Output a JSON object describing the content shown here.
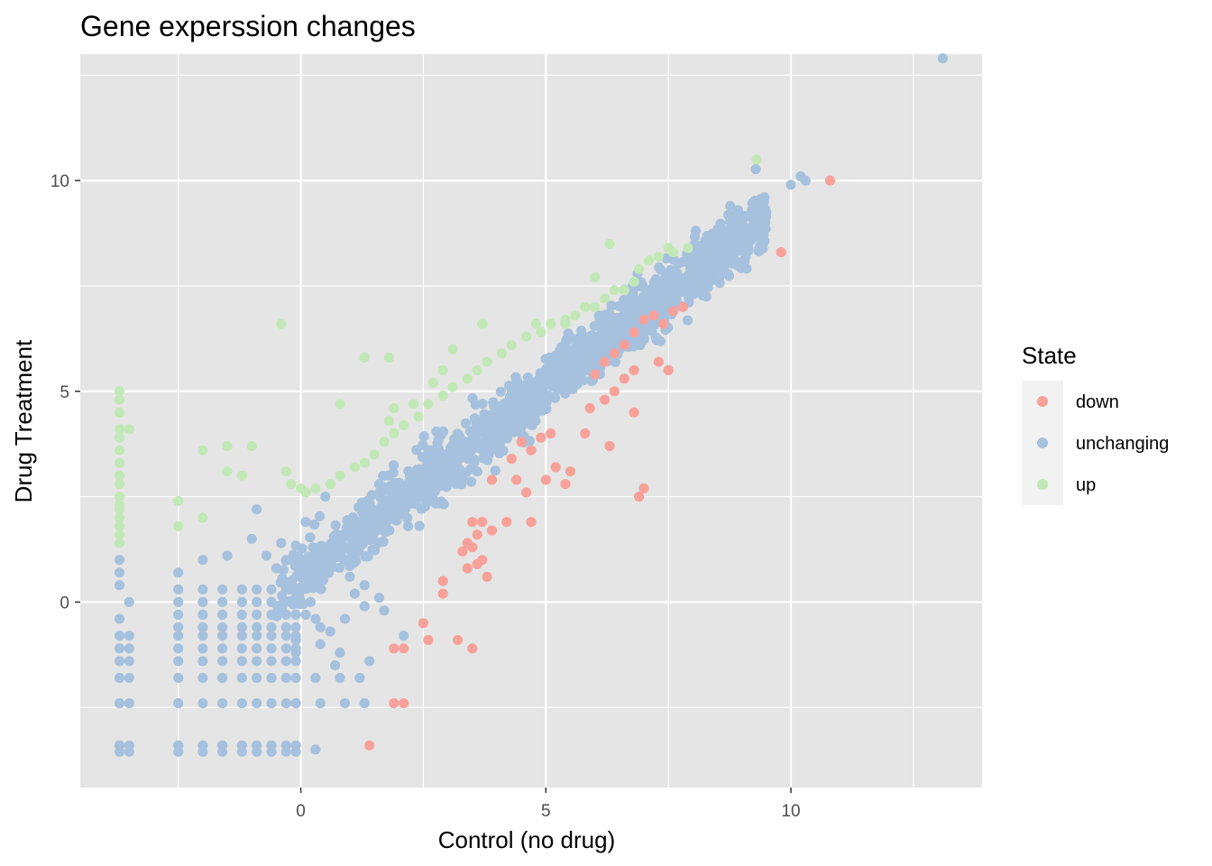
{
  "chart_data": {
    "type": "scatter",
    "title": "Gene experssion changes",
    "xlabel": "Control (no drug)",
    "ylabel": "Drug Treatment",
    "xlim": [
      -4.5,
      13.9
    ],
    "ylim": [
      -4.4,
      13.0
    ],
    "x_ticks": [
      0,
      5,
      10
    ],
    "y_ticks": [
      0,
      5,
      10
    ],
    "grid": true,
    "panel_color": "#e5e5e5",
    "legend": {
      "title": "State",
      "position": "right",
      "entries": [
        {
          "label": "down",
          "color": "#f8a19a"
        },
        {
          "label": "unchanging",
          "color": "#a6c1dd"
        },
        {
          "label": "up",
          "color": "#c3e8b7"
        }
      ]
    },
    "series": [
      {
        "name": "down",
        "color": "#f8a19a",
        "points": [
          [
            10.8,
            10.0
          ],
          [
            9.8,
            8.3
          ],
          [
            7.8,
            7.0
          ],
          [
            7.6,
            6.9
          ],
          [
            7.4,
            6.6
          ],
          [
            7.2,
            6.8
          ],
          [
            7.0,
            6.7
          ],
          [
            6.8,
            6.4
          ],
          [
            6.6,
            6.1
          ],
          [
            6.4,
            5.9
          ],
          [
            6.2,
            5.7
          ],
          [
            6.0,
            5.4
          ],
          [
            7.3,
            5.7
          ],
          [
            7.5,
            5.5
          ],
          [
            6.8,
            5.5
          ],
          [
            6.6,
            5.3
          ],
          [
            6.4,
            5.0
          ],
          [
            6.2,
            4.8
          ],
          [
            5.9,
            4.6
          ],
          [
            6.8,
            4.5
          ],
          [
            5.8,
            4.0
          ],
          [
            6.3,
            3.7
          ],
          [
            5.1,
            4.0
          ],
          [
            4.9,
            3.9
          ],
          [
            4.5,
            3.8
          ],
          [
            4.7,
            3.6
          ],
          [
            4.3,
            3.4
          ],
          [
            3.9,
            2.9
          ],
          [
            4.4,
            2.9
          ],
          [
            4.6,
            2.6
          ],
          [
            5.0,
            2.9
          ],
          [
            5.2,
            3.2
          ],
          [
            5.5,
            3.1
          ],
          [
            5.4,
            2.8
          ],
          [
            4.2,
            1.9
          ],
          [
            4.7,
            1.9
          ],
          [
            3.5,
            1.9
          ],
          [
            3.7,
            1.9
          ],
          [
            3.9,
            1.7
          ],
          [
            3.6,
            1.6
          ],
          [
            3.4,
            1.4
          ],
          [
            3.5,
            1.3
          ],
          [
            3.3,
            1.2
          ],
          [
            3.7,
            1.0
          ],
          [
            3.6,
            0.9
          ],
          [
            3.4,
            0.8
          ],
          [
            3.8,
            0.6
          ],
          [
            2.9,
            0.5
          ],
          [
            2.9,
            0.2
          ],
          [
            2.5,
            -0.5
          ],
          [
            2.6,
            -0.9
          ],
          [
            3.2,
            -0.9
          ],
          [
            3.5,
            -1.1
          ],
          [
            1.9,
            -1.1
          ],
          [
            2.1,
            -1.1
          ],
          [
            1.9,
            -2.4
          ],
          [
            2.1,
            -2.4
          ],
          [
            1.4,
            -3.4
          ],
          [
            6.9,
            2.5
          ],
          [
            7.0,
            2.7
          ]
        ]
      },
      {
        "name": "up",
        "color": "#c3e8b7",
        "points": [
          [
            9.3,
            10.5
          ],
          [
            7.9,
            8.4
          ],
          [
            7.6,
            8.3
          ],
          [
            7.5,
            8.4
          ],
          [
            7.3,
            8.2
          ],
          [
            7.1,
            8.1
          ],
          [
            6.9,
            7.9
          ],
          [
            6.8,
            7.6
          ],
          [
            6.6,
            7.4
          ],
          [
            6.4,
            7.4
          ],
          [
            6.2,
            7.2
          ],
          [
            6.0,
            7.0
          ],
          [
            5.8,
            7.0
          ],
          [
            5.6,
            6.8
          ],
          [
            5.4,
            6.7
          ],
          [
            5.1,
            6.6
          ],
          [
            4.9,
            6.4
          ],
          [
            4.6,
            6.3
          ],
          [
            4.3,
            6.1
          ],
          [
            4.1,
            5.9
          ],
          [
            3.8,
            5.7
          ],
          [
            3.6,
            5.5
          ],
          [
            3.4,
            5.3
          ],
          [
            3.1,
            5.1
          ],
          [
            2.9,
            4.9
          ],
          [
            2.6,
            4.7
          ],
          [
            2.4,
            4.4
          ],
          [
            2.1,
            4.2
          ],
          [
            1.9,
            4.0
          ],
          [
            1.7,
            3.8
          ],
          [
            1.5,
            3.5
          ],
          [
            1.3,
            3.3
          ],
          [
            1.1,
            3.2
          ],
          [
            0.8,
            3.0
          ],
          [
            0.6,
            2.8
          ],
          [
            0.3,
            2.7
          ],
          [
            0.1,
            2.6
          ],
          [
            0.0,
            2.7
          ],
          [
            -0.2,
            2.8
          ],
          [
            -0.3,
            3.1
          ],
          [
            6.3,
            8.5
          ],
          [
            6.0,
            7.7
          ],
          [
            5.4,
            6.6
          ],
          [
            4.8,
            6.6
          ],
          [
            3.7,
            6.6
          ],
          [
            3.1,
            6.0
          ],
          [
            2.9,
            5.5
          ],
          [
            2.7,
            5.2
          ],
          [
            2.3,
            4.7
          ],
          [
            1.9,
            4.6
          ],
          [
            1.8,
            4.3
          ],
          [
            1.3,
            5.8
          ],
          [
            0.8,
            4.7
          ],
          [
            1.8,
            5.8
          ],
          [
            -0.4,
            6.6
          ],
          [
            -1.0,
            3.7
          ],
          [
            -1.5,
            3.7
          ],
          [
            -1.2,
            3.0
          ],
          [
            -1.5,
            3.1
          ],
          [
            -2.0,
            3.6
          ],
          [
            -2.0,
            2.0
          ],
          [
            -2.5,
            2.4
          ],
          [
            -2.5,
            1.8
          ],
          [
            -3.7,
            5.0
          ],
          [
            -3.7,
            4.8
          ],
          [
            -3.7,
            4.5
          ],
          [
            -3.7,
            4.1
          ],
          [
            -3.5,
            4.1
          ],
          [
            -3.7,
            3.9
          ],
          [
            -3.7,
            3.6
          ],
          [
            -3.7,
            3.3
          ],
          [
            -3.7,
            3.0
          ],
          [
            -3.7,
            2.8
          ],
          [
            -3.7,
            2.5
          ],
          [
            -3.7,
            2.3
          ],
          [
            -3.7,
            2.2
          ],
          [
            -3.7,
            2.0
          ],
          [
            -3.7,
            1.8
          ],
          [
            -3.7,
            1.6
          ],
          [
            -3.7,
            1.4
          ]
        ]
      },
      {
        "name": "unchanging",
        "color": "#a6c1dd",
        "generator": {
          "trend": {
            "slope": 0.9,
            "intercept": 0.6
          },
          "x_range": [
            -0.5,
            9.5
          ],
          "noise_sd": 0.35,
          "count": 1500,
          "seed": 7
        },
        "points": [
          [
            13.1,
            12.9
          ],
          [
            10.2,
            10.1
          ],
          [
            10.0,
            9.9
          ],
          [
            10.3,
            10.0
          ],
          [
            9.4,
            9.5
          ],
          [
            9.3,
            8.8
          ],
          [
            9.2,
            9.3
          ],
          [
            8.6,
            8.7
          ],
          [
            8.4,
            8.1
          ],
          [
            8.3,
            8.5
          ],
          [
            1.4,
            -1.4
          ],
          [
            2.1,
            -0.8
          ],
          [
            1.7,
            -0.2
          ],
          [
            1.3,
            0.4
          ],
          [
            1.0,
            0.6
          ],
          [
            0.6,
            0.9
          ],
          [
            0.3,
            0.8
          ],
          [
            0.0,
            0.7
          ],
          [
            -0.3,
            1.0
          ],
          [
            -0.5,
            0.8
          ],
          [
            -0.7,
            1.1
          ],
          [
            -1.0,
            1.5
          ],
          [
            -1.5,
            1.1
          ],
          [
            -2.0,
            1.0
          ],
          [
            -2.5,
            0.7
          ],
          [
            -0.2,
            0.5
          ],
          [
            -0.4,
            1.4
          ],
          [
            -0.9,
            2.2
          ],
          [
            0.1,
            1.9
          ],
          [
            0.5,
            2.5
          ],
          [
            0.2,
            0.0
          ],
          [
            0.0,
            0.3
          ],
          [
            0.1,
            -0.3
          ],
          [
            0.3,
            -0.4
          ],
          [
            0.4,
            -0.6
          ],
          [
            0.6,
            -0.7
          ],
          [
            0.9,
            -0.4
          ],
          [
            0.8,
            -1.2
          ],
          [
            1.3,
            -0.1
          ],
          [
            1.6,
            0.1
          ],
          [
            1.1,
            0.2
          ],
          [
            -0.1,
            -0.9
          ],
          [
            -0.1,
            -1.2
          ],
          [
            0.4,
            -1.0
          ],
          [
            0.7,
            -1.5
          ],
          [
            0.3,
            -1.8
          ],
          [
            0.8,
            -1.8
          ],
          [
            1.2,
            -1.8
          ],
          [
            0.4,
            -2.4
          ],
          [
            0.9,
            -2.4
          ],
          [
            1.3,
            -2.4
          ],
          [
            0.3,
            -3.5
          ],
          [
            -3.7,
            1.0
          ],
          [
            -3.7,
            0.7
          ],
          [
            -3.7,
            0.4
          ],
          [
            -3.5,
            0.0
          ],
          [
            -3.7,
            -0.4
          ],
          [
            -3.7,
            -0.8
          ],
          [
            -3.5,
            -0.8
          ],
          [
            -3.7,
            -1.1
          ],
          [
            -3.5,
            -1.1
          ],
          [
            -3.7,
            -1.4
          ],
          [
            -3.5,
            -1.4
          ],
          [
            -3.7,
            -1.8
          ],
          [
            -3.5,
            -1.8
          ],
          [
            -3.7,
            -2.4
          ],
          [
            -3.5,
            -2.4
          ],
          [
            -3.7,
            -3.4
          ],
          [
            -3.5,
            -3.4
          ],
          [
            -3.7,
            -3.55
          ],
          [
            -3.5,
            -3.55
          ]
        ],
        "column_x": [
          -2.5,
          -2.0,
          -1.6,
          -1.2,
          -0.9,
          -0.6,
          -0.3,
          -0.1
        ],
        "column_y": [
          0.3,
          0.0,
          -0.3,
          -0.6,
          -0.8,
          -1.1,
          -1.4,
          -1.8,
          -2.4,
          -3.4,
          -3.55
        ]
      }
    ]
  }
}
